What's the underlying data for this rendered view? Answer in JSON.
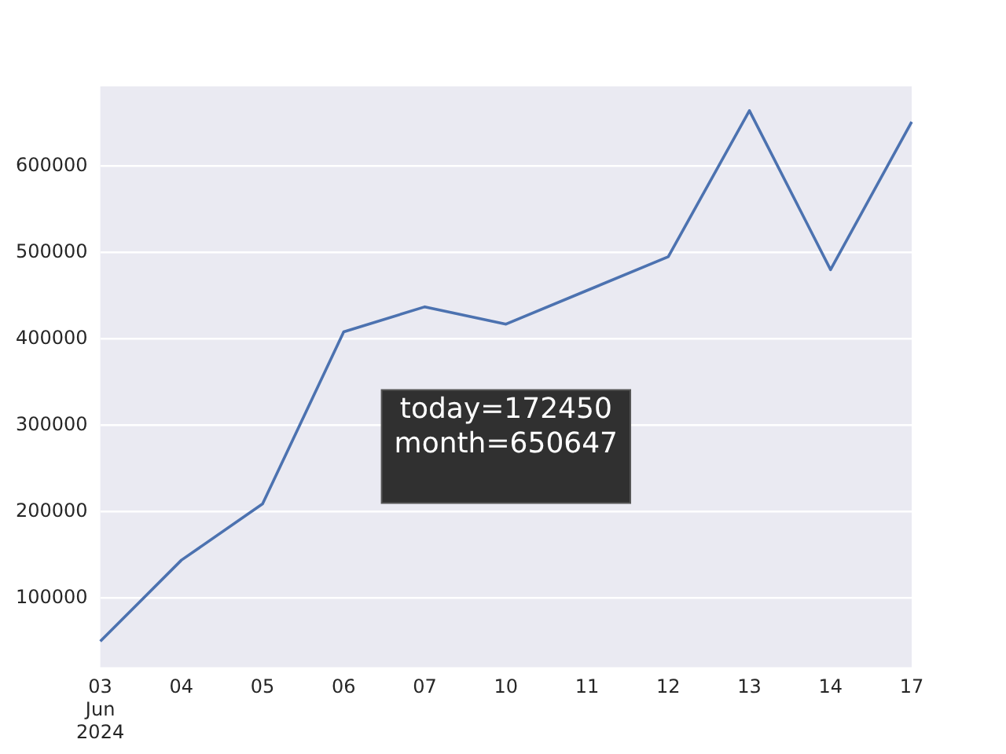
{
  "chart_data": {
    "type": "line",
    "categories": [
      "03\nJun\n2024",
      "04",
      "05",
      "06",
      "07",
      "10",
      "11",
      "12",
      "13",
      "14",
      "17"
    ],
    "series": [
      {
        "color": "#4c72b0",
        "values": [
          50000,
          144000,
          209000,
          408000,
          437000,
          417000,
          456000,
          495000,
          664000,
          480000,
          651000
        ]
      }
    ],
    "ylim": [
      20000,
      692000
    ],
    "yticks": [
      100000,
      200000,
      300000,
      400000,
      500000,
      600000
    ],
    "grid": "y",
    "legend": false,
    "marker": "none",
    "line_style": "solid",
    "annotations": [
      "today=172450\nmonth=650647"
    ]
  }
}
